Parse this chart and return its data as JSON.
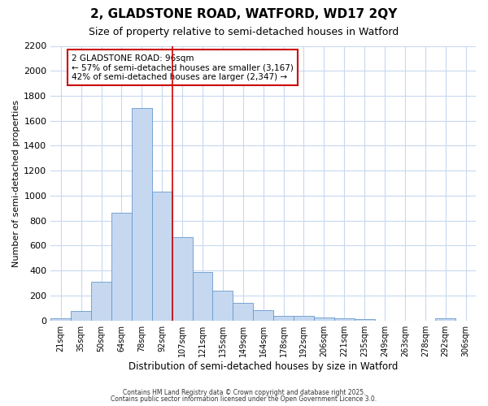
{
  "title_line1": "2, GLADSTONE ROAD, WATFORD, WD17 2QY",
  "title_line2": "Size of property relative to semi-detached houses in Watford",
  "xlabel": "Distribution of semi-detached houses by size in Watford",
  "ylabel": "Number of semi-detached properties",
  "bar_labels": [
    "21sqm",
    "35sqm",
    "50sqm",
    "64sqm",
    "78sqm",
    "92sqm",
    "107sqm",
    "121sqm",
    "135sqm",
    "149sqm",
    "164sqm",
    "178sqm",
    "192sqm",
    "206sqm",
    "221sqm",
    "235sqm",
    "249sqm",
    "263sqm",
    "278sqm",
    "292sqm",
    "306sqm"
  ],
  "bar_values": [
    20,
    75,
    310,
    860,
    1700,
    1030,
    670,
    390,
    240,
    140,
    80,
    40,
    35,
    25,
    20,
    10,
    0,
    0,
    0,
    20,
    0
  ],
  "bar_color": "#c5d8f0",
  "bar_edge_color": "#6699cc",
  "grid_color": "#c8d8f0",
  "background_color": "#ffffff",
  "red_line_x": 5.5,
  "annotation_text": "2 GLADSTONE ROAD: 96sqm\n← 57% of semi-detached houses are smaller (3,167)\n42% of semi-detached houses are larger (2,347) →",
  "annotation_box_color": "#ffffff",
  "annotation_box_edge": "#cc0000",
  "ylim": [
    0,
    2200
  ],
  "yticks": [
    0,
    200,
    400,
    600,
    800,
    1000,
    1200,
    1400,
    1600,
    1800,
    2000,
    2200
  ],
  "footer_line1": "Contains HM Land Registry data © Crown copyright and database right 2025.",
  "footer_line2": "Contains public sector information licensed under the Open Government Licence 3.0."
}
